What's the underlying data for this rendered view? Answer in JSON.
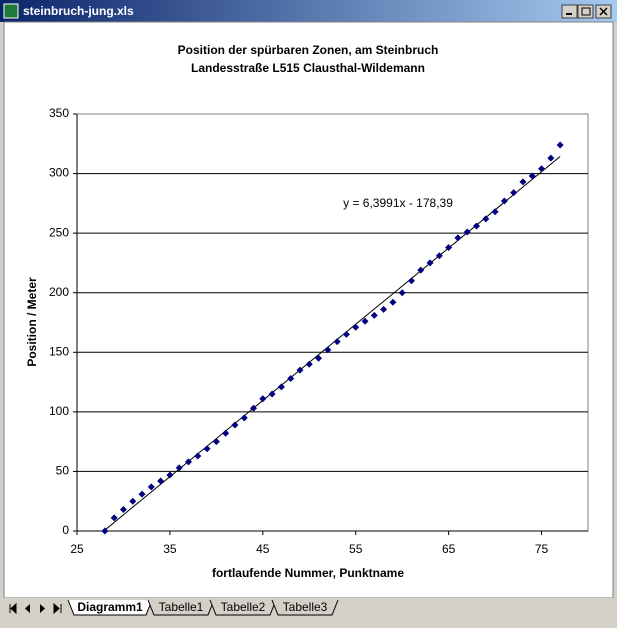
{
  "window": {
    "title": "steinbruch-jung.xls"
  },
  "tabs": [
    "Diagramm1",
    "Tabelle1",
    "Tabelle2",
    "Tabelle3"
  ],
  "chart_data": {
    "type": "scatter",
    "title": "Position der spürbaren Zonen, am Steinbruch",
    "subtitle": "Landesstraße L515 Clausthal-Wildemann",
    "x_label": "fortlaufende Nummer, Punktname",
    "y_label": "Position / Meter",
    "x": [
      28,
      29,
      30,
      31,
      32,
      33,
      34,
      35,
      36,
      37,
      38,
      39,
      40,
      41,
      42,
      43,
      44,
      45,
      46,
      47,
      48,
      49,
      50,
      51,
      52,
      53,
      54,
      55,
      56,
      57,
      58,
      59,
      60,
      61,
      62,
      63,
      64,
      65,
      66,
      67,
      68,
      69,
      70,
      71,
      72,
      73,
      74,
      75,
      76,
      77
    ],
    "values": [
      0,
      11,
      18,
      25,
      31,
      37,
      42,
      47,
      53,
      58,
      63,
      69,
      75,
      82,
      89,
      95,
      103,
      111,
      115,
      121,
      128,
      135,
      140,
      145,
      152,
      159,
      165,
      171,
      176,
      181,
      186,
      192,
      200,
      210,
      219,
      225,
      231,
      238,
      246,
      251,
      256,
      262,
      268,
      277,
      284,
      293,
      298,
      304,
      313,
      324
    ],
    "color": "#000080",
    "xlim": [
      25,
      80
    ],
    "xticks": [
      25,
      35,
      45,
      55,
      65,
      75
    ],
    "ylim": [
      0,
      350
    ],
    "yticks": [
      0,
      50,
      100,
      150,
      200,
      250,
      300,
      350
    ],
    "grid": true,
    "trendline": {
      "slope": 6.3991,
      "intercept": -178.39,
      "label": "y = 6,3991x - 178,39"
    }
  }
}
